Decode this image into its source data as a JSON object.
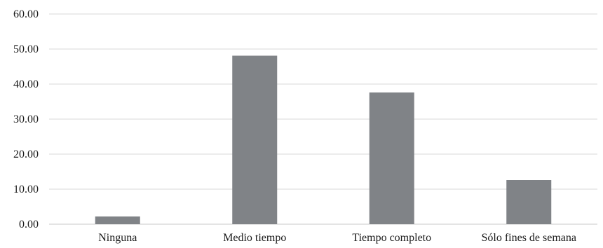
{
  "chart_data": {
    "type": "bar",
    "categories": [
      "Ninguna",
      "Medio tiempo",
      "Tiempo completo",
      "Sólo fines de semana"
    ],
    "values": [
      2.2,
      48.1,
      37.6,
      12.6
    ],
    "ylim": [
      0,
      60
    ],
    "yticks": [
      "0.00",
      "10.00",
      "20.00",
      "30.00",
      "40.00",
      "50.00",
      "60.00"
    ],
    "ytick_values": [
      0,
      10,
      20,
      30,
      40,
      50,
      60
    ],
    "grid": true,
    "bar_color": "#808387",
    "grid_color": "#d9d9d9",
    "axis_color": "#c8c8c8"
  }
}
